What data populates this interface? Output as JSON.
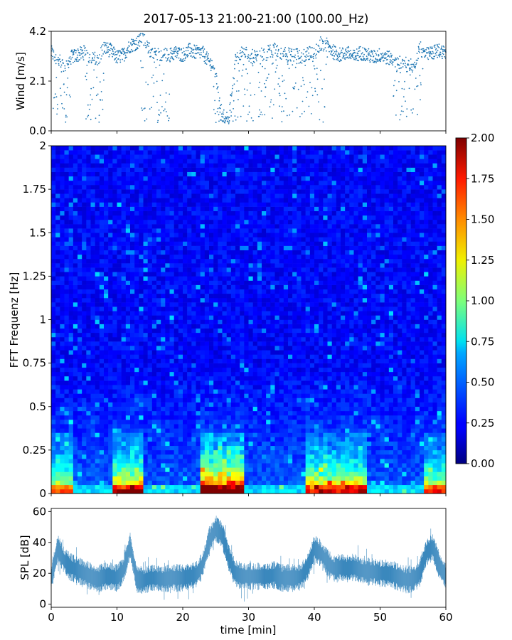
{
  "title": "2017-05-13 21:00-21:00 (100.00_Hz)",
  "chart_data": [
    {
      "type": "scatter",
      "panel": "wind",
      "ylabel": "Wind [m/s]",
      "xlim": [
        0,
        60
      ],
      "ylim": [
        0,
        4.2
      ],
      "yticks": [
        "0.0",
        "2.1",
        "4.2"
      ],
      "series_color": "#1f77b4",
      "profile": {
        "x": [
          0,
          1,
          2,
          3,
          4,
          5,
          6,
          7,
          8,
          9,
          10,
          11,
          12,
          13,
          14,
          15,
          16,
          17,
          18,
          19,
          20,
          21,
          22,
          23,
          24,
          25,
          26,
          27,
          28,
          29,
          30,
          31,
          32,
          33,
          34,
          35,
          36,
          37,
          38,
          39,
          40,
          41,
          42,
          43,
          44,
          45,
          46,
          47,
          48,
          49,
          50,
          51,
          52,
          53,
          54,
          55,
          56,
          57,
          58,
          59,
          60
        ],
        "y_upper": [
          3.3,
          3.0,
          2.7,
          3.1,
          3.2,
          3.3,
          3.1,
          3.0,
          3.5,
          3.4,
          3.1,
          3.2,
          3.6,
          3.7,
          3.9,
          3.4,
          3.3,
          3.2,
          3.2,
          3.3,
          3.2,
          3.4,
          3.3,
          3.3,
          2.9,
          2.7,
          0.6,
          0.6,
          3.0,
          3.3,
          3.2,
          3.1,
          3.2,
          3.3,
          3.4,
          3.3,
          3.2,
          3.2,
          3.1,
          3.3,
          3.2,
          3.7,
          3.6,
          3.3,
          3.2,
          3.3,
          3.1,
          3.3,
          3.2,
          3.1,
          3.2,
          3.1,
          3.0,
          2.9,
          2.8,
          2.7,
          3.5,
          3.2,
          3.3,
          3.4,
          3.3
        ],
        "dip_regions": [
          [
            0.3,
            3.0
          ],
          [
            5.0,
            8.0
          ],
          [
            13.5,
            18.0
          ],
          [
            24.5,
            31.0
          ],
          [
            31.5,
            38.0
          ],
          [
            38.0,
            42.0
          ],
          [
            52.0,
            56.5
          ]
        ]
      }
    },
    {
      "type": "heatmap",
      "panel": "spectrogram",
      "ylabel": "FFT Frequenz [Hz]",
      "xlim": [
        0,
        60
      ],
      "ylim": [
        0,
        2
      ],
      "yticks": [
        "0",
        "0.25",
        "0.5",
        "0.75",
        "1",
        "1.25",
        "1.5",
        "1.75",
        "2"
      ],
      "colorbar": {
        "min": 0,
        "max": 2,
        "ticks": [
          "0.00",
          "0.25",
          "0.50",
          "0.75",
          "1.00",
          "1.25",
          "1.50",
          "1.75",
          "2.00"
        ],
        "colormap": "jet"
      },
      "active_regions": [
        [
          0,
          3.5,
          1.0
        ],
        [
          9.5,
          14.0,
          1.3
        ],
        [
          22.5,
          29.5,
          1.7
        ],
        [
          39.0,
          48.0,
          1.2
        ],
        [
          56.5,
          60,
          1.0
        ]
      ]
    },
    {
      "type": "line",
      "panel": "spl",
      "ylabel": "SPL [dB]",
      "xlabel": "time [min]",
      "xlim": [
        0,
        60
      ],
      "ylim": [
        -2,
        62
      ],
      "yticks": [
        "0",
        "20",
        "40",
        "60"
      ],
      "xticks": [
        "0",
        "10",
        "20",
        "30",
        "40",
        "50",
        "60"
      ],
      "series_color": "#1f77b4",
      "x": [
        0,
        1,
        2,
        3,
        4,
        5,
        6,
        7,
        8,
        9,
        10,
        11,
        12,
        13,
        14,
        15,
        16,
        17,
        18,
        19,
        20,
        21,
        22,
        23,
        24,
        25,
        26,
        27,
        28,
        29,
        30,
        31,
        32,
        33,
        34,
        35,
        36,
        37,
        38,
        39,
        40,
        41,
        42,
        43,
        44,
        45,
        46,
        47,
        48,
        49,
        50,
        51,
        52,
        53,
        54,
        55,
        56,
        57,
        58,
        59,
        60
      ],
      "y": [
        17,
        36,
        28,
        24,
        22,
        20,
        18,
        16,
        18,
        18,
        17,
        22,
        38,
        16,
        15,
        17,
        17,
        16,
        17,
        17,
        17,
        18,
        19,
        25,
        41,
        49,
        45,
        30,
        20,
        18,
        18,
        18,
        18,
        18,
        19,
        17,
        17,
        17,
        18,
        24,
        36,
        33,
        27,
        23,
        24,
        23,
        24,
        22,
        21,
        21,
        20,
        20,
        19,
        17,
        16,
        16,
        20,
        33,
        37,
        25,
        18
      ]
    }
  ]
}
